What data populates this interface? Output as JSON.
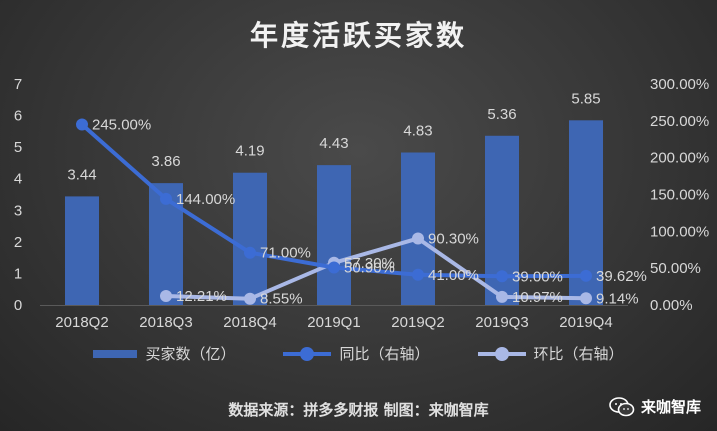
{
  "title": "年度活跃买家数",
  "footer": {
    "source": "数据来源：拼多多财报 制图：来咖智库",
    "brand": "来咖智库"
  },
  "colors": {
    "bar": "#3e66b3",
    "yoy_line": "#3c6cd4",
    "qoq_line": "#a9b8e6",
    "text": "#d8d8d8",
    "grid": "#5a5a5a"
  },
  "chart_data": {
    "type": "bar",
    "title": "年度活跃买家数",
    "categories": [
      "2018Q2",
      "2018Q3",
      "2018Q4",
      "2019Q1",
      "2019Q2",
      "2019Q3",
      "2019Q4"
    ],
    "ylim": [
      0,
      7
    ],
    "y_ticks": [
      0,
      1,
      2,
      3,
      4,
      5,
      6,
      7
    ],
    "y2lim": [
      0,
      300
    ],
    "y2_ticks": [
      "0.00%",
      "50.00%",
      "100.00%",
      "150.00%",
      "200.00%",
      "250.00%",
      "300.00%"
    ],
    "legend_position": "bottom",
    "grid": false,
    "series": [
      {
        "name": "买家数（亿）",
        "kind": "bar",
        "axis": "left",
        "values": [
          3.44,
          3.86,
          4.19,
          4.43,
          4.83,
          5.36,
          5.85
        ],
        "labels": [
          "3.44",
          "3.86",
          "4.19",
          "4.43",
          "4.83",
          "5.36",
          "5.85"
        ]
      },
      {
        "name": "同比（右轴）",
        "kind": "line",
        "axis": "right",
        "values": [
          245.0,
          144.0,
          71.0,
          50.9,
          41.0,
          39.0,
          39.62
        ],
        "labels": [
          "245.00%",
          "144.00%",
          "71.00%",
          "50.90%",
          "41.00%",
          "39.00%",
          "39.62%"
        ]
      },
      {
        "name": "环比（右轴）",
        "kind": "line",
        "axis": "right",
        "values": [
          null,
          12.21,
          8.55,
          57.3,
          90.3,
          10.97,
          9.14
        ],
        "labels": [
          null,
          "12.21%",
          "8.55%",
          "57.30%",
          "90.30%",
          "10.97%",
          "9.14%"
        ]
      }
    ]
  }
}
